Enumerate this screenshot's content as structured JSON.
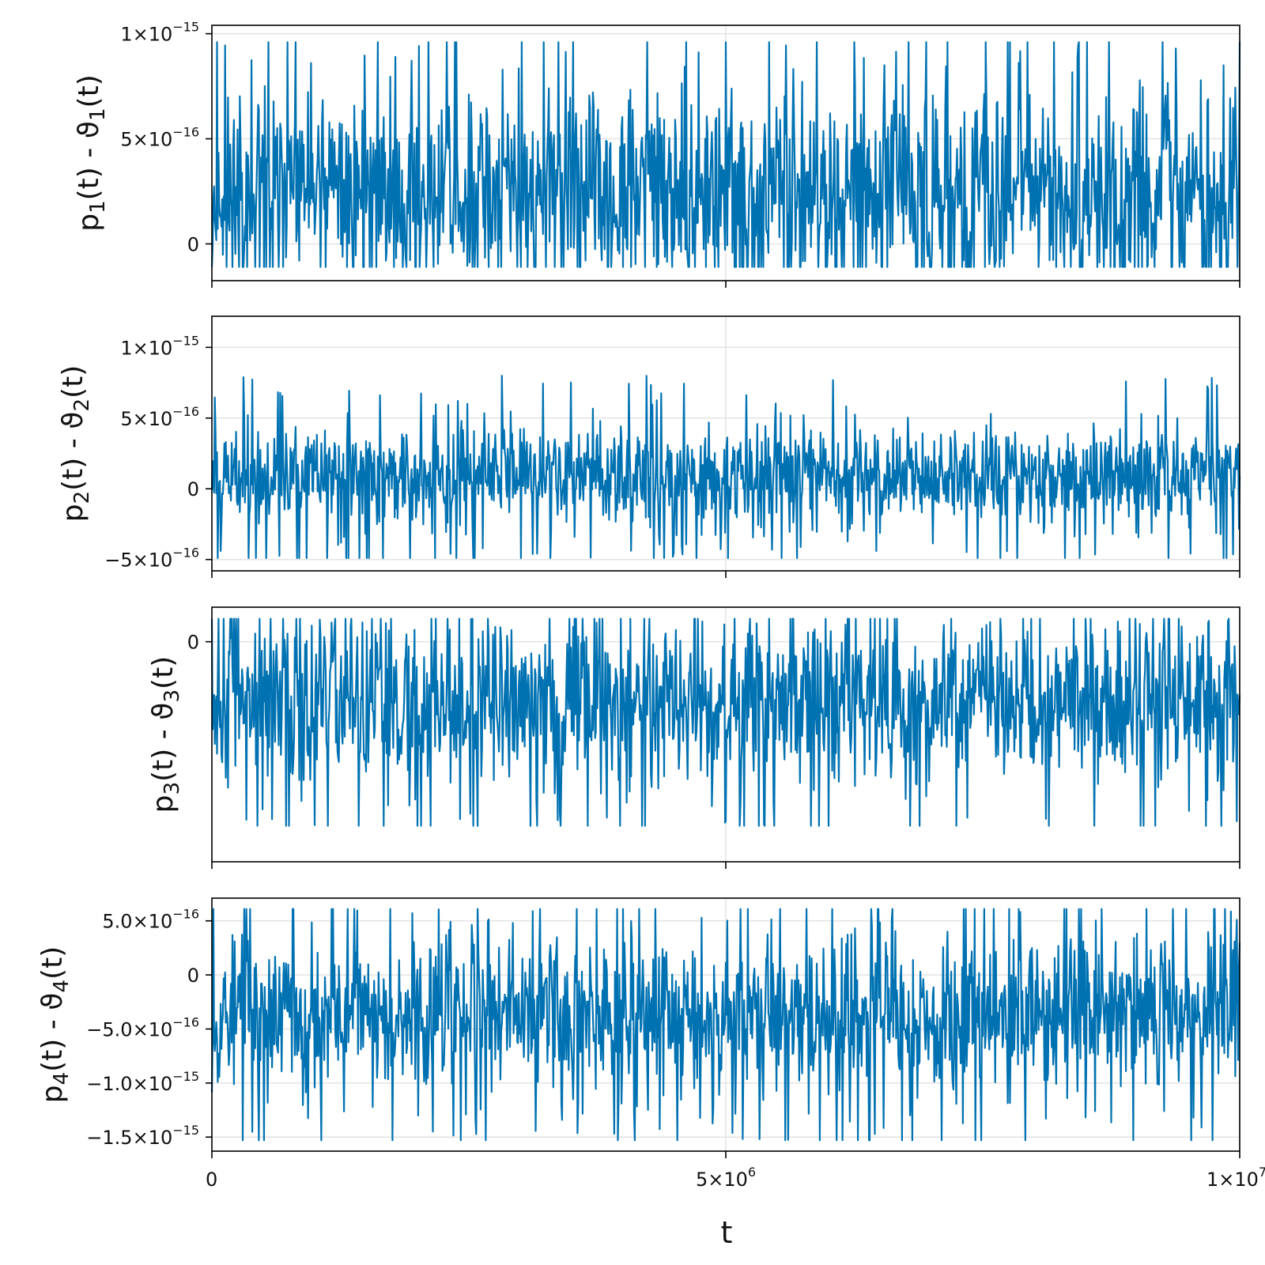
{
  "series_color": "#0072b2",
  "x_axis": {
    "title": "t",
    "range": [
      0,
      10000000
    ],
    "ticks": [
      {
        "value": 0,
        "mant": "0",
        "exp": ""
      },
      {
        "value": 5000000,
        "mant": "5×10",
        "exp": "6"
      },
      {
        "value": 10000000,
        "mant": "1×10",
        "exp": "7"
      }
    ]
  },
  "chart_data": [
    {
      "type": "line",
      "ylabel": {
        "base": "p",
        "sub": "1",
        "mid": "(t) - ϑ",
        "sub2": "1",
        "end": "(t)"
      },
      "ylim": [
        -1.75e-16,
        1.04e-15
      ],
      "yticks": [
        {
          "value": 1e-15,
          "mant": "1×10",
          "exp": "−15"
        },
        {
          "value": 5e-16,
          "mant": "5×10",
          "exp": "−16"
        },
        {
          "value": 0,
          "mant": "0",
          "exp": ""
        }
      ],
      "noise": {
        "seed": 11,
        "center": 2.5e-16,
        "spread": 3.4e-16,
        "clip": [
          -1.1e-16,
          9.6e-16
        ]
      },
      "spikes": [
        [
          2400000,
          6e-17
        ]
      ]
    },
    {
      "type": "line",
      "ylabel": {
        "base": "p",
        "sub": "2",
        "mid": "(t) - ϑ",
        "sub2": "2",
        "end": "(t)"
      },
      "ylim": [
        -5.8e-16,
        1.22e-15
      ],
      "yticks": [
        {
          "value": 1e-15,
          "mant": "1×10",
          "exp": "−15"
        },
        {
          "value": 5e-16,
          "mant": "5×10",
          "exp": "−16"
        },
        {
          "value": 0,
          "mant": "0",
          "exp": ""
        },
        {
          "value": -5e-16,
          "mant": "−5×10",
          "exp": "−16"
        }
      ],
      "noise": {
        "seed": 23,
        "center": 1e-16,
        "spread": 2.5e-16,
        "clip": [
          -4.9e-16,
          1.12e-15
        ]
      },
      "spikes": []
    },
    {
      "type": "line",
      "ylabel": {
        "base": "p",
        "sub": "3",
        "mid": "(t) - ϑ",
        "sub2": "3",
        "end": "(t)"
      },
      "ylim": [
        -1.53e-15,
        2.4e-16
      ],
      "yticks": [
        {
          "value": 0,
          "mant": "0",
          "exp": ""
        }
      ],
      "noise": {
        "seed": 37,
        "center": -4.2e-16,
        "spread": 4.2e-16,
        "clip": [
          -1.28e-15,
          1.6e-16
        ]
      },
      "spikes": []
    },
    {
      "type": "line",
      "ylabel": {
        "base": "p",
        "sub": "4",
        "mid": "(t) - ϑ",
        "sub2": "4",
        "end": "(t)"
      },
      "ylim": [
        -1.63e-15,
        7.1e-16
      ],
      "yticks": [
        {
          "value": 5e-16,
          "mant": "5.0×10",
          "exp": "−16"
        },
        {
          "value": 0,
          "mant": "0",
          "exp": ""
        },
        {
          "value": -5e-16,
          "mant": "−5.0×10",
          "exp": "−16"
        },
        {
          "value": -1e-15,
          "mant": "−1.0×10",
          "exp": "−15"
        },
        {
          "value": -1.5e-15,
          "mant": "−1.5×10",
          "exp": "−15"
        }
      ],
      "noise": {
        "seed": 53,
        "center": -3.6e-16,
        "spread": 5.2e-16,
        "clip": [
          -1.53e-15,
          6.1e-16
        ]
      },
      "spikes": [
        [
          2400000,
          -1.5e-16
        ]
      ]
    }
  ]
}
